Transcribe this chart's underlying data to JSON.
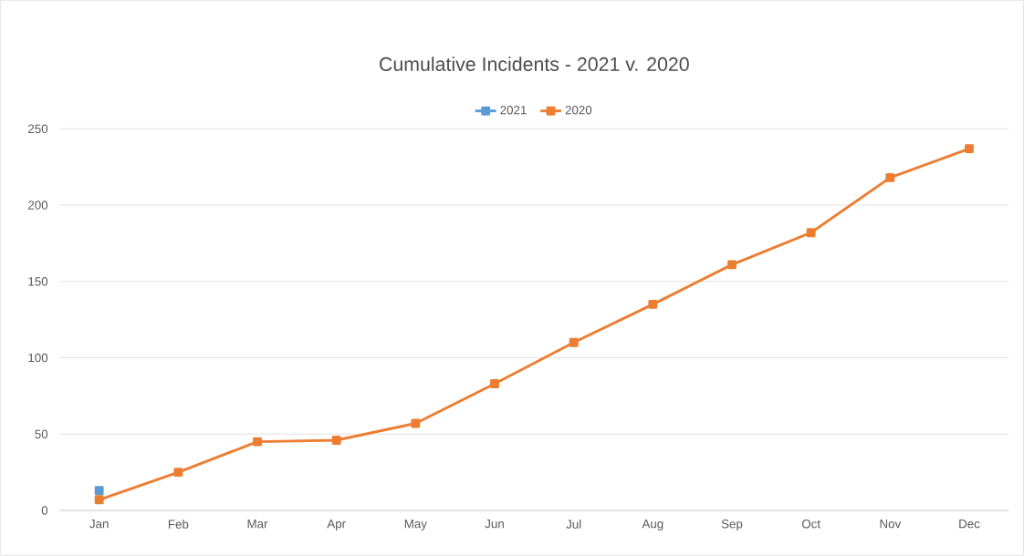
{
  "chart_data": {
    "type": "line",
    "title": "Cumulative Incidents - 2021 v. 2020",
    "categories": [
      "Jan",
      "Feb",
      "Mar",
      "Apr",
      "May",
      "Jun",
      "Jul",
      "Aug",
      "Sep",
      "Oct",
      "Nov",
      "Dec"
    ],
    "series": [
      {
        "name": "2021",
        "color": "#5b9bd5",
        "values": [
          13,
          null,
          null,
          null,
          null,
          null,
          null,
          null,
          null,
          null,
          null,
          null
        ]
      },
      {
        "name": "2020",
        "color": "#ed7d31",
        "values": [
          7,
          25,
          45,
          46,
          57,
          83,
          110,
          135,
          161,
          182,
          218,
          237
        ]
      }
    ],
    "ylim": [
      0,
      250
    ],
    "yticks": [
      0,
      50,
      100,
      150,
      200,
      250
    ],
    "grid": "y",
    "legend": "top",
    "marker": "square",
    "line_style": "solid"
  }
}
